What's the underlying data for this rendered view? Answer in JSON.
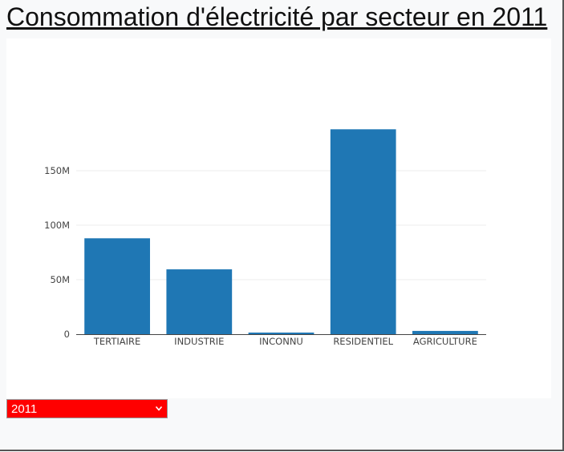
{
  "page": {
    "title": "Consommation d'électricité par secteur en 2011"
  },
  "year_select": {
    "value": "2011"
  },
  "colors": {
    "bar": "#1f77b4",
    "grid": "#eeeeee",
    "select_bg": "#ff0000"
  },
  "icons": {
    "dropdown": "chevron-down-icon"
  },
  "chart_data": {
    "type": "bar",
    "categories": [
      "TERTIAIRE",
      "INDUSTRIE",
      "INCONNU",
      "RESIDENTIEL",
      "AGRICULTURE"
    ],
    "values": [
      88000000,
      59500000,
      1500000,
      188000000,
      3000000
    ],
    "ylim": [
      0,
      200000000
    ],
    "yticks": [
      0,
      50000000,
      100000000,
      150000000
    ],
    "ytick_labels": [
      "0",
      "50M",
      "100M",
      "150M"
    ],
    "grid": true,
    "title": "",
    "xlabel": "",
    "ylabel": ""
  }
}
